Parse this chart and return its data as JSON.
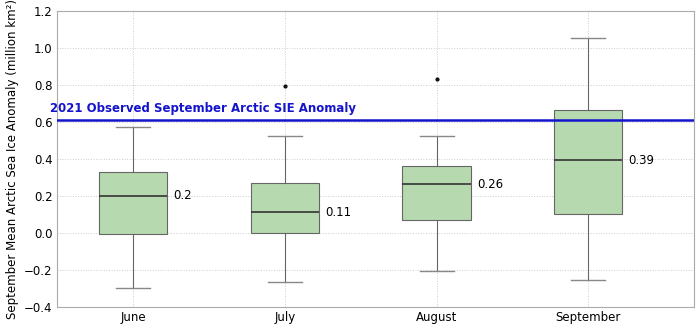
{
  "months": [
    "June",
    "July",
    "August",
    "September"
  ],
  "positions": [
    1,
    2,
    3,
    4
  ],
  "box_data": {
    "June": {
      "whislo": -0.3,
      "q1": -0.01,
      "med": 0.2,
      "q3": 0.33,
      "whishi": 0.57,
      "fliers": []
    },
    "July": {
      "whislo": -0.265,
      "q1": 0.0,
      "med": 0.11,
      "q3": 0.27,
      "whishi": 0.52,
      "fliers": [
        0.79
      ]
    },
    "August": {
      "whislo": -0.21,
      "q1": 0.07,
      "med": 0.26,
      "q3": 0.36,
      "whishi": 0.52,
      "fliers": [
        0.83
      ]
    },
    "September": {
      "whislo": -0.255,
      "q1": 0.1,
      "med": 0.39,
      "q3": 0.66,
      "whishi": 1.05,
      "fliers": []
    }
  },
  "medians": [
    0.2,
    0.11,
    0.26,
    0.39
  ],
  "observed_line": 0.61,
  "observed_label": "2021 Observed September Arctic SIE Anomaly",
  "ylabel": "September Mean Arctic Sea Ice Anomaly (million km²)",
  "ylim": [
    -0.4,
    1.2
  ],
  "yticks": [
    -0.4,
    -0.2,
    0.0,
    0.2,
    0.4,
    0.6,
    0.8,
    1.0,
    1.2
  ],
  "box_facecolor": "#b7d9b0",
  "box_edgecolor": "#666666",
  "median_color": "#333333",
  "whisker_color": "#666666",
  "cap_color": "#888888",
  "flier_color": "#111111",
  "observed_line_color": "#1414cc",
  "observed_label_color": "#1414cc",
  "grid_color": "#cccccc",
  "background_color": "#ffffff",
  "observed_label_fontsize": 8.5,
  "tick_label_fontsize": 8.5,
  "ylabel_fontsize": 8.5,
  "median_annotation_fontsize": 8.5,
  "box_width": 0.45
}
